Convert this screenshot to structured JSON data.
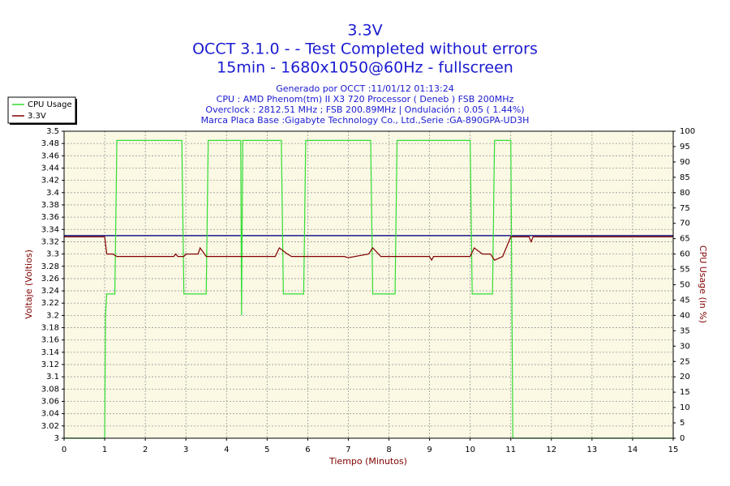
{
  "chart_data": {
    "type": "line",
    "title": "3.3V",
    "title_lines": [
      "OCCT 3.1.0 -  - Test Completed without errors",
      "15min - 1680x1050@60Hz - fullscreen"
    ],
    "subtitle_lines": [
      "Generado por OCCT :11/01/12 01:13:24",
      "CPU : AMD Phenom(tm) II X3 720 Processor ( Deneb ) FSB 200MHz",
      "Overclock : 2812.51 MHz ; FSB 200.89MHz | Ondulación : 0.05 ( 1.44%)",
      "Marca Placa Base :Gigabyte Technology Co., Ltd.,Serie :GA-890GPA-UD3H"
    ],
    "x_label": "Tiempo (Minutos)",
    "y_label": "Voltaje (Voltios)",
    "y2_label": "CPU Usage (in %)",
    "xlim": [
      0,
      15
    ],
    "xticks": [
      0,
      1,
      2,
      3,
      4,
      5,
      6,
      7,
      8,
      9,
      10,
      11,
      12,
      13,
      14,
      15
    ],
    "ylim": [
      3,
      3.5
    ],
    "yticks": [
      3,
      3.02,
      3.04,
      3.06,
      3.08,
      3.1,
      3.12,
      3.14,
      3.16,
      3.18,
      3.2,
      3.22,
      3.24,
      3.26,
      3.28,
      3.3,
      3.32,
      3.34,
      3.36,
      3.38,
      3.4,
      3.42,
      3.44,
      3.46,
      3.48,
      3.5
    ],
    "y2lim": [
      0,
      100
    ],
    "y2ticks": [
      0,
      5,
      10,
      15,
      20,
      25,
      30,
      35,
      40,
      45,
      50,
      55,
      60,
      65,
      70,
      75,
      80,
      85,
      90,
      95,
      100
    ],
    "grid": true,
    "legend": "top-left",
    "hline": {
      "value": 3.33,
      "color": "#1a1a8c"
    },
    "series": [
      {
        "name": "CPU Usage",
        "color": "#33dd33",
        "axis": "y2",
        "x": [
          0,
          1.0,
          1.02,
          1.05,
          1.25,
          1.3,
          2.9,
          2.95,
          3.5,
          3.55,
          4.35,
          4.37,
          4.4,
          5.35,
          5.4,
          5.9,
          5.95,
          7.55,
          7.6,
          8.15,
          8.2,
          10.0,
          10.05,
          10.55,
          10.6,
          11.0,
          11.05,
          15
        ],
        "values": [
          0,
          0,
          40,
          47,
          47,
          97,
          97,
          47,
          47,
          97,
          97,
          40,
          97,
          97,
          47,
          47,
          97,
          97,
          47,
          47,
          97,
          97,
          47,
          47,
          97,
          97,
          0,
          0
        ]
      },
      {
        "name": "3.3V",
        "color": "#800000",
        "axis": "y",
        "x": [
          0,
          1,
          1.05,
          1.2,
          1.3,
          2.7,
          2.75,
          2.8,
          2.95,
          3,
          3.3,
          3.35,
          3.5,
          5.2,
          5.3,
          5.5,
          5.6,
          5.8,
          6.0,
          6.9,
          7.0,
          7.5,
          7.6,
          7.8,
          8.0,
          9.0,
          9.05,
          9.1,
          10.0,
          10.1,
          10.3,
          10.5,
          10.6,
          10.8,
          11.0,
          11.45,
          11.5,
          11.55,
          15
        ],
        "values": [
          3.328,
          3.328,
          3.3,
          3.3,
          3.296,
          3.296,
          3.3,
          3.296,
          3.296,
          3.3,
          3.3,
          3.31,
          3.296,
          3.296,
          3.31,
          3.3,
          3.296,
          3.296,
          3.296,
          3.296,
          3.294,
          3.3,
          3.31,
          3.296,
          3.296,
          3.296,
          3.29,
          3.296,
          3.296,
          3.31,
          3.3,
          3.3,
          3.29,
          3.296,
          3.328,
          3.328,
          3.32,
          3.328,
          3.328
        ]
      }
    ]
  }
}
